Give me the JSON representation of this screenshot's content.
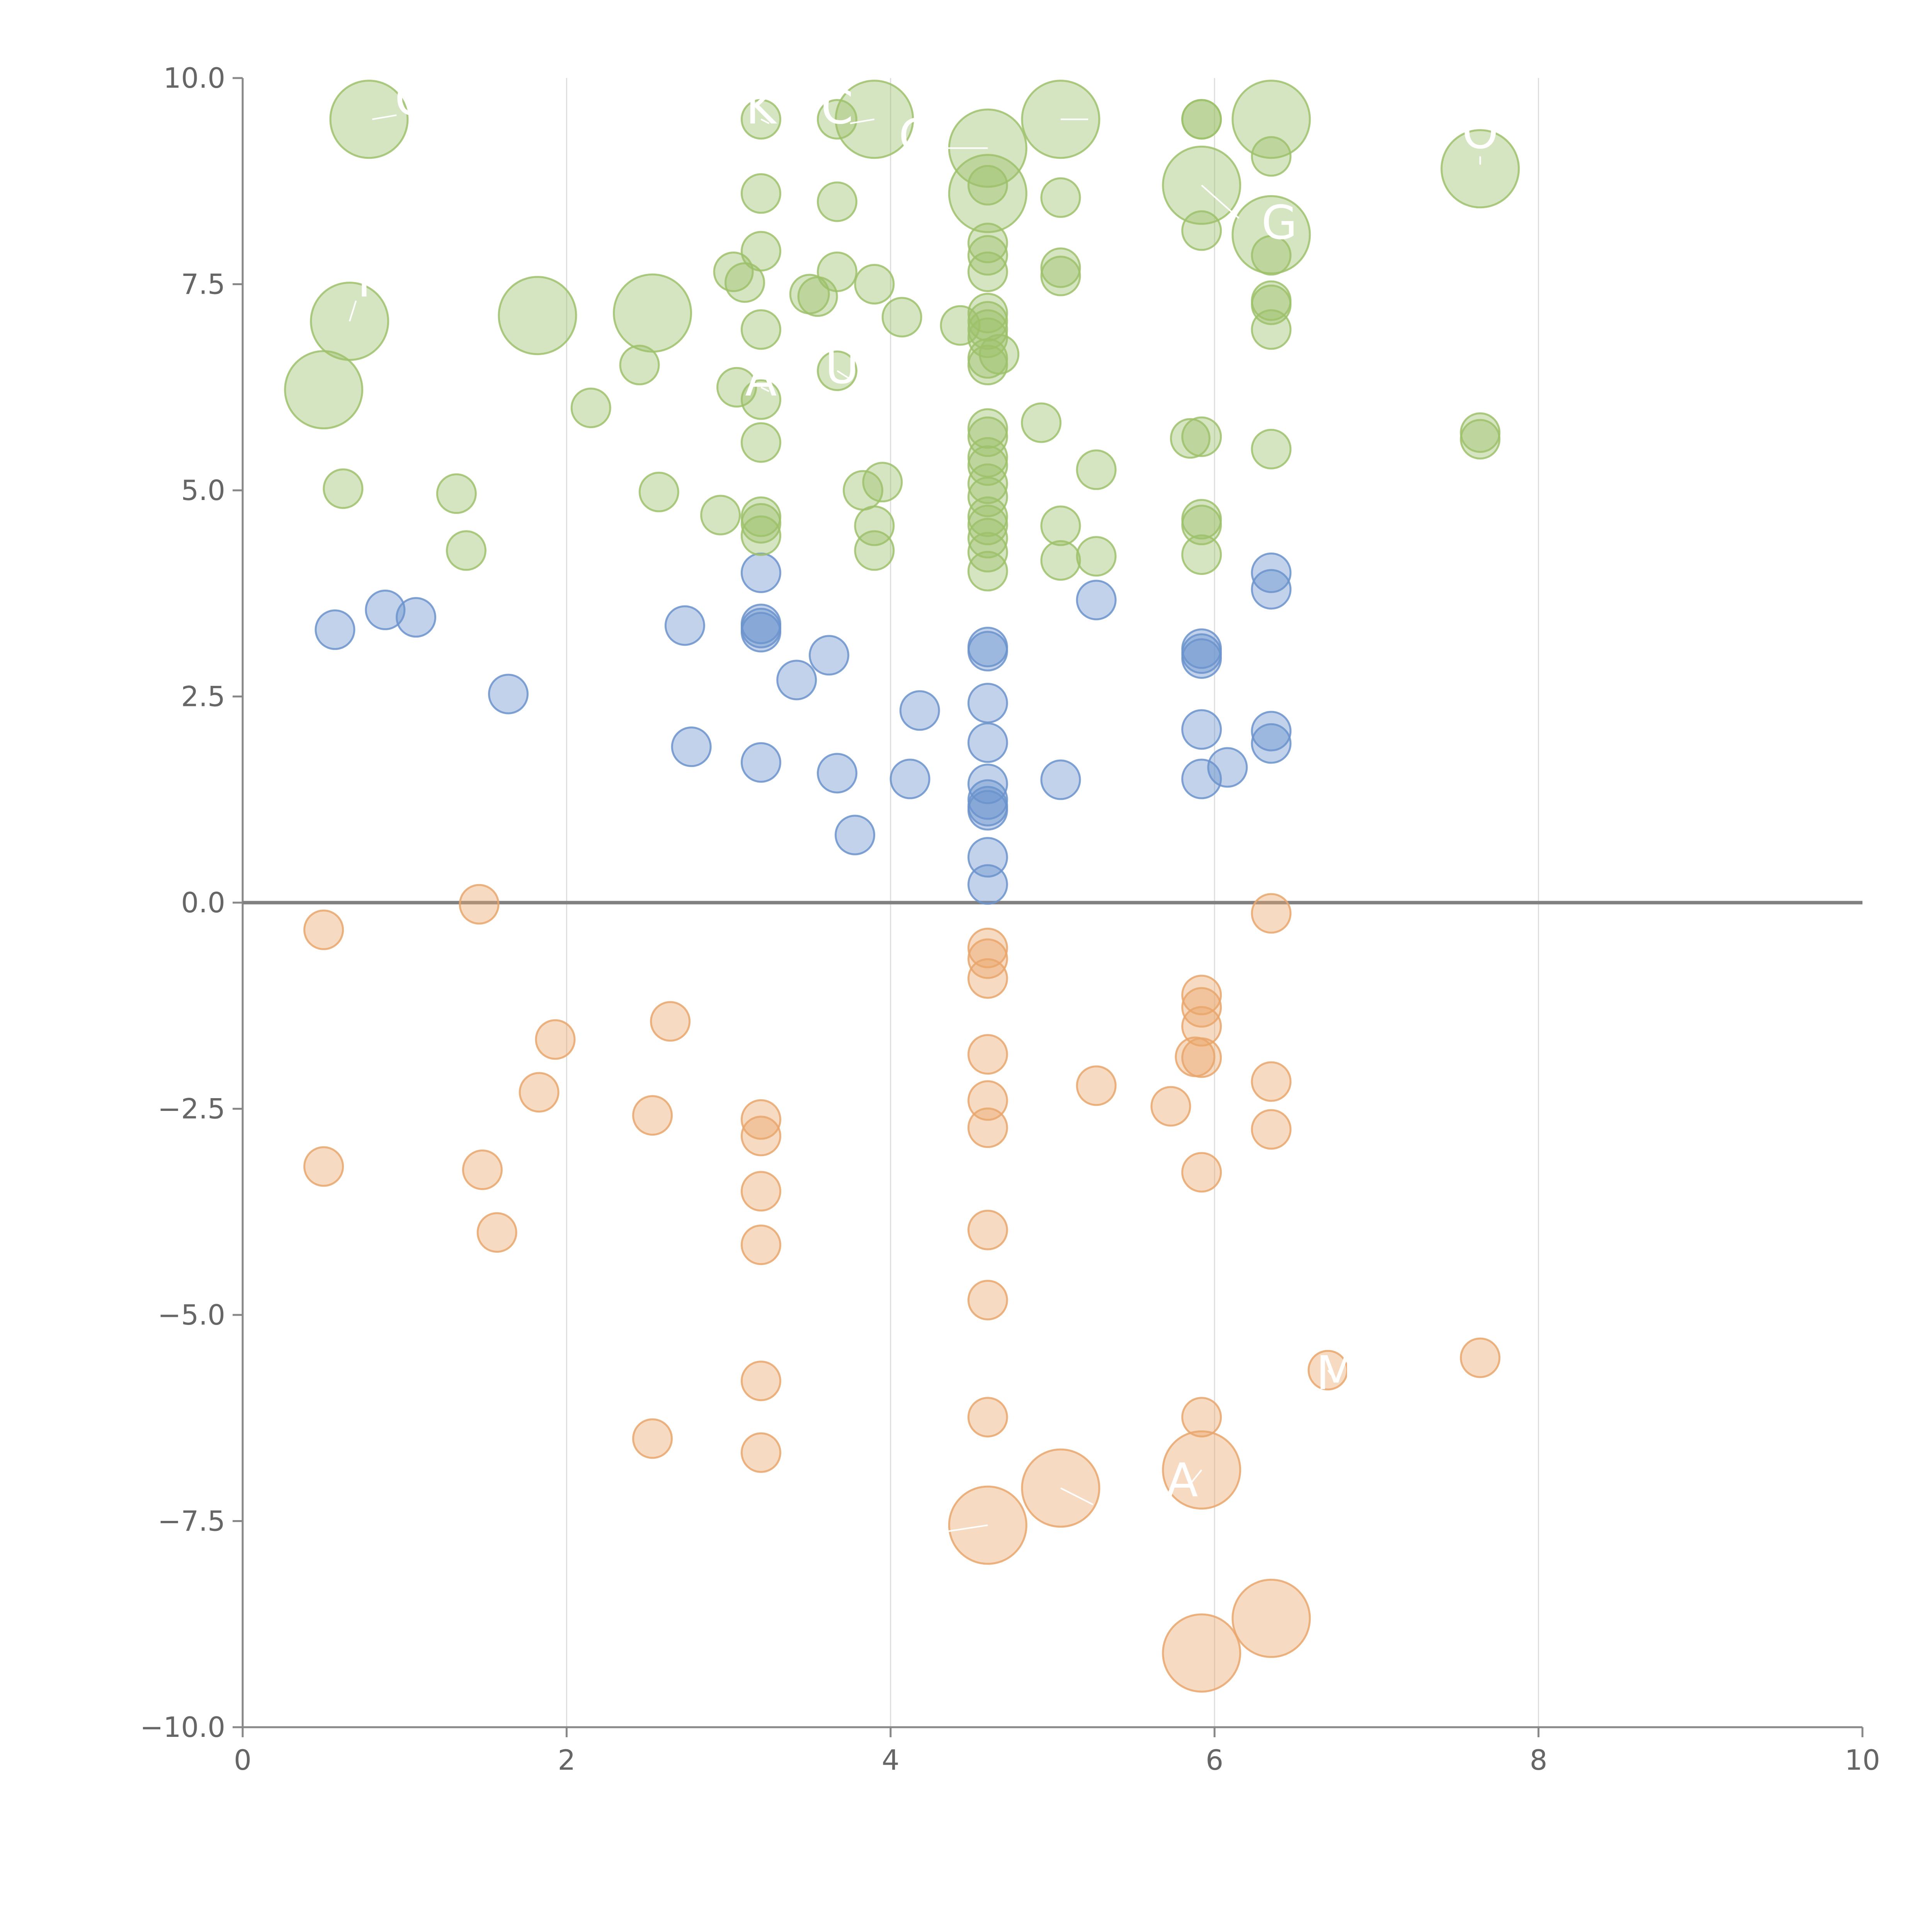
{
  "chart_data": {
    "type": "scatter",
    "title": "",
    "xlabel": "",
    "ylabel": "",
    "xlim": [
      0,
      10
    ],
    "ylim": [
      -10,
      10
    ],
    "grid": "vertical",
    "x_ticks": [
      0,
      2,
      4,
      6,
      8,
      10
    ],
    "y_ticks": [
      10,
      7.5,
      5,
      2.5,
      0,
      -2.5,
      -5,
      -7.5,
      -10
    ],
    "x_tick_labels": [
      "0",
      "2",
      "4",
      "6",
      "8",
      "10"
    ],
    "y_tick_labels": [
      "10.0",
      "7.5",
      "5.0",
      "2.5",
      "0.0",
      "−2.5",
      "−5.0",
      "−7.5",
      "−10.0"
    ],
    "colors": {
      "high": "#9dc16b",
      "mid": "#6b93cd",
      "low": "#e9a66c"
    },
    "series": [
      {
        "name": "high",
        "points": [
          [
            0.78,
            9.5,
            "L"
          ],
          [
            3.9,
            9.5,
            "L"
          ],
          [
            4.6,
            9.15,
            "L"
          ],
          [
            4.6,
            8.6,
            "L"
          ],
          [
            5.05,
            9.5,
            "L"
          ],
          [
            6.35,
            9.5,
            "L"
          ],
          [
            5.92,
            8.7,
            "L"
          ],
          [
            6.35,
            8.1,
            "L"
          ],
          [
            7.64,
            8.9,
            "L"
          ],
          [
            0.66,
            7.05,
            "L"
          ],
          [
            1.82,
            7.12,
            "L"
          ],
          [
            2.53,
            7.15,
            "L"
          ],
          [
            0.5,
            6.22,
            "L"
          ],
          [
            3.2,
            9.5
          ],
          [
            3.67,
            9.5
          ],
          [
            5.92,
            9.5
          ],
          [
            5.92,
            9.5
          ],
          [
            6.35,
            9.05
          ],
          [
            3.2,
            8.6
          ],
          [
            3.67,
            8.5
          ],
          [
            4.6,
            8.7
          ],
          [
            5.05,
            8.55
          ],
          [
            5.92,
            8.15
          ],
          [
            3.2,
            7.9
          ],
          [
            4.6,
            8.0
          ],
          [
            4.6,
            7.85
          ],
          [
            4.6,
            7.65
          ],
          [
            3.03,
            7.65
          ],
          [
            3.1,
            7.52
          ],
          [
            3.67,
            7.65
          ],
          [
            3.9,
            7.5
          ],
          [
            5.05,
            7.7
          ],
          [
            5.05,
            7.6
          ],
          [
            6.35,
            7.85
          ],
          [
            3.5,
            7.38
          ],
          [
            3.55,
            7.35
          ],
          [
            3.2,
            6.95
          ],
          [
            4.07,
            7.1
          ],
          [
            4.43,
            7.0
          ],
          [
            4.6,
            7.15
          ],
          [
            4.6,
            7.05
          ],
          [
            4.6,
            6.95
          ],
          [
            4.6,
            6.85
          ],
          [
            4.6,
            6.6
          ],
          [
            4.6,
            6.52
          ],
          [
            4.67,
            6.65
          ],
          [
            6.35,
            7.3
          ],
          [
            6.35,
            7.25
          ],
          [
            6.35,
            6.95
          ],
          [
            2.45,
            6.52
          ],
          [
            3.67,
            6.45
          ],
          [
            3.05,
            6.25
          ],
          [
            3.2,
            6.1
          ],
          [
            2.15,
            6.0
          ],
          [
            3.2,
            5.58
          ],
          [
            4.6,
            5.75
          ],
          [
            4.6,
            5.65
          ],
          [
            4.93,
            5.82
          ],
          [
            5.27,
            5.25
          ],
          [
            5.85,
            5.63
          ],
          [
            5.92,
            5.65
          ],
          [
            6.35,
            5.5
          ],
          [
            7.64,
            5.7
          ],
          [
            7.64,
            5.62
          ],
          [
            4.6,
            5.4
          ],
          [
            4.6,
            5.3
          ],
          [
            4.6,
            5.08
          ],
          [
            4.6,
            4.92
          ],
          [
            3.83,
            5.0
          ],
          [
            3.95,
            5.1
          ],
          [
            0.62,
            5.02
          ],
          [
            1.32,
            4.96
          ],
          [
            2.57,
            4.98
          ],
          [
            2.95,
            4.7
          ],
          [
            3.2,
            4.68
          ],
          [
            3.2,
            4.6
          ],
          [
            3.2,
            4.45
          ],
          [
            3.9,
            4.57
          ],
          [
            4.6,
            4.68
          ],
          [
            4.6,
            4.58
          ],
          [
            4.6,
            4.42
          ],
          [
            5.05,
            4.57
          ],
          [
            5.92,
            4.65
          ],
          [
            5.92,
            4.58
          ],
          [
            1.38,
            4.27
          ],
          [
            3.9,
            4.27
          ],
          [
            4.6,
            4.25
          ],
          [
            4.6,
            4.02
          ],
          [
            5.05,
            4.15
          ],
          [
            5.27,
            4.2
          ],
          [
            5.92,
            4.22
          ]
        ]
      },
      {
        "name": "mid",
        "points": [
          [
            0.57,
            3.31
          ],
          [
            0.88,
            3.55
          ],
          [
            1.07,
            3.46
          ],
          [
            1.64,
            2.53
          ],
          [
            2.73,
            3.36
          ],
          [
            2.77,
            1.89
          ],
          [
            3.2,
            4.0
          ],
          [
            3.2,
            3.38
          ],
          [
            3.2,
            3.33
          ],
          [
            3.2,
            3.28
          ],
          [
            3.2,
            1.7
          ],
          [
            3.42,
            2.7
          ],
          [
            3.62,
            3.0
          ],
          [
            3.67,
            1.57
          ],
          [
            3.78,
            0.82
          ],
          [
            4.12,
            1.5
          ],
          [
            4.18,
            2.33
          ],
          [
            4.6,
            3.1
          ],
          [
            4.6,
            3.05
          ],
          [
            4.6,
            2.42
          ],
          [
            4.6,
            1.94
          ],
          [
            4.6,
            1.44
          ],
          [
            4.6,
            1.25
          ],
          [
            4.6,
            1.17
          ],
          [
            4.6,
            1.12
          ],
          [
            4.6,
            0.55
          ],
          [
            4.6,
            0.22
          ],
          [
            5.05,
            1.49
          ],
          [
            5.27,
            3.67
          ],
          [
            5.92,
            3.08
          ],
          [
            5.92,
            3.02
          ],
          [
            5.92,
            2.96
          ],
          [
            5.92,
            2.1
          ],
          [
            5.92,
            1.5
          ],
          [
            6.08,
            1.64
          ],
          [
            6.35,
            4.0
          ],
          [
            6.35,
            3.8
          ],
          [
            6.35,
            2.08
          ],
          [
            6.35,
            1.93
          ]
        ]
      },
      {
        "name": "low",
        "points": [
          [
            0.5,
            -0.33
          ],
          [
            1.46,
            -0.02
          ],
          [
            1.93,
            -1.66
          ],
          [
            1.83,
            -2.3
          ],
          [
            2.64,
            -1.44
          ],
          [
            2.53,
            -2.58
          ],
          [
            0.5,
            -3.2
          ],
          [
            1.48,
            -3.24
          ],
          [
            1.57,
            -4.0
          ],
          [
            3.2,
            -2.63
          ],
          [
            3.2,
            -2.83
          ],
          [
            3.2,
            -3.5
          ],
          [
            3.2,
            -4.15
          ],
          [
            4.6,
            -0.55
          ],
          [
            4.6,
            -0.68
          ],
          [
            4.6,
            -0.92
          ],
          [
            4.6,
            -1.84
          ],
          [
            4.6,
            -2.4
          ],
          [
            4.6,
            -2.73
          ],
          [
            4.6,
            -3.97
          ],
          [
            4.6,
            -4.82
          ],
          [
            5.27,
            -2.22
          ],
          [
            5.73,
            -2.47
          ],
          [
            5.92,
            -1.12
          ],
          [
            5.92,
            -1.27
          ],
          [
            5.92,
            -1.5
          ],
          [
            5.88,
            -1.87
          ],
          [
            5.92,
            -1.88
          ],
          [
            5.92,
            -3.27
          ],
          [
            6.35,
            -0.13
          ],
          [
            6.35,
            -2.17
          ],
          [
            6.35,
            -2.75
          ],
          [
            3.2,
            -5.8
          ],
          [
            2.53,
            -6.5
          ],
          [
            3.2,
            -6.67
          ],
          [
            4.6,
            -6.24
          ],
          [
            5.92,
            -6.24
          ],
          [
            6.7,
            -5.67
          ],
          [
            7.64,
            -5.52
          ],
          [
            4.6,
            -7.55,
            "L"
          ],
          [
            5.05,
            -7.1,
            "L"
          ],
          [
            5.92,
            -6.88,
            "L"
          ],
          [
            6.35,
            -8.68,
            "L"
          ],
          [
            5.92,
            -9.1,
            "L"
          ]
        ]
      }
    ],
    "annotations": [
      {
        "text": "G",
        "x": 1.05,
        "y": 9.55,
        "lx1": 0.8,
        "ly1": 9.5,
        "lx2": 0.95,
        "ly2": 9.55
      },
      {
        "text": "K",
        "x": 3.2,
        "y": 9.45,
        "lx1": 3.2,
        "ly1": 9.5,
        "lx2": 3.25,
        "ly2": 9.45
      },
      {
        "text": "C",
        "x": 3.67,
        "y": 9.45,
        "lx1": 3.9,
        "ly1": 9.5,
        "lx2": 3.75,
        "ly2": 9.45
      },
      {
        "text": "C",
        "x": 4.15,
        "y": 9.1,
        "lx1": 4.6,
        "ly1": 9.15,
        "lx2": 4.3,
        "ly2": 9.15
      },
      {
        "text": "L",
        "x": 5.35,
        "y": 9.5,
        "lx1": 5.05,
        "ly1": 9.5,
        "lx2": 5.22,
        "ly2": 9.5
      },
      {
        "text": "O",
        "x": 7.64,
        "y": 9.15,
        "lx1": 7.64,
        "ly1": 8.95,
        "lx2": 7.64,
        "ly2": 9.05
      },
      {
        "text": "G",
        "x": 6.4,
        "y": 8.05,
        "lx1": 5.92,
        "ly1": 8.7,
        "lx2": 6.15,
        "ly2": 8.3
      },
      {
        "text": "T",
        "x": 0.75,
        "y": 7.35,
        "lx1": 0.66,
        "ly1": 7.05,
        "lx2": 0.7,
        "ly2": 7.3
      },
      {
        "text": "A",
        "x": 3.2,
        "y": 6.15,
        "lx1": 3.2,
        "ly1": 6.25,
        "lx2": 3.25,
        "ly2": 6.2
      },
      {
        "text": "U",
        "x": 3.7,
        "y": 6.3,
        "lx1": 3.67,
        "ly1": 6.45,
        "lx2": 3.75,
        "ly2": 6.35
      },
      {
        "text": "M",
        "x": 6.75,
        "y": -5.9,
        "lx1": 6.7,
        "ly1": -5.67,
        "lx2": 6.75,
        "ly2": -5.8
      },
      {
        "text": "L",
        "x": 5.35,
        "y": -7.4,
        "lx1": 5.05,
        "ly1": -7.1,
        "lx2": 5.25,
        "ly2": -7.3
      },
      {
        "text": "A",
        "x": 5.8,
        "y": -7.2,
        "lx1": 5.92,
        "ly1": -6.88,
        "lx2": 5.85,
        "ly2": -7.05
      },
      {
        "text": "I",
        "x": 4.02,
        "y": -7.7,
        "lx1": 4.6,
        "ly1": -7.55,
        "lx2": 4.1,
        "ly2": -7.7
      }
    ]
  }
}
